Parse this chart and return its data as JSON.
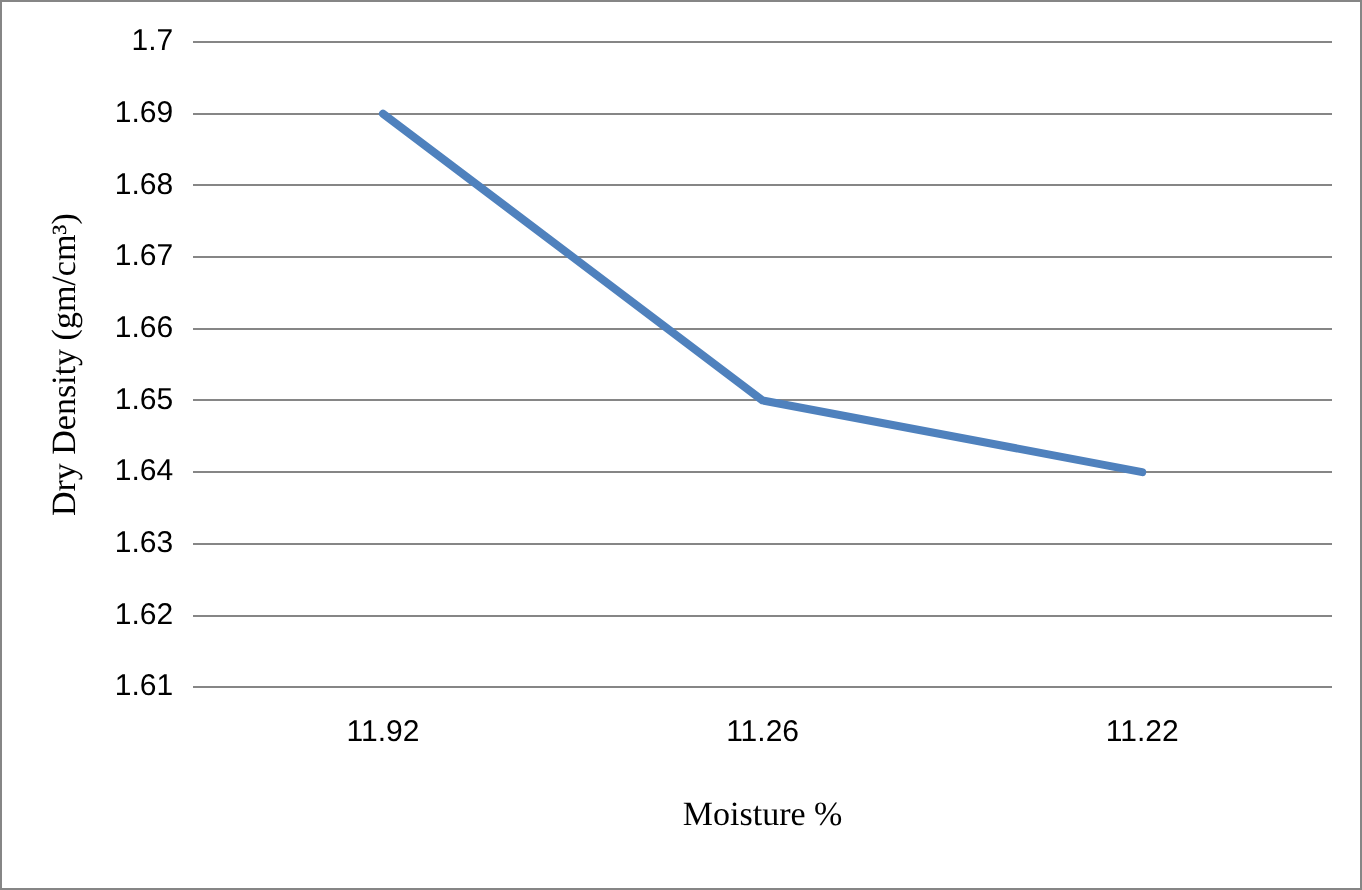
{
  "chart_data": {
    "type": "line",
    "xlabel": "Moisture %",
    "ylabel": "Dry Density (gm/cm³)",
    "categories": [
      "11.92",
      "11.26",
      "11.22"
    ],
    "series": [
      {
        "color": "#4f81bd",
        "values": [
          1.69,
          1.65,
          1.64
        ]
      }
    ],
    "ylim": [
      1.61,
      1.7
    ],
    "yticks": [
      1.61,
      1.62,
      1.63,
      1.64,
      1.65,
      1.66,
      1.67,
      1.68,
      1.69,
      1.7
    ],
    "grid": "y",
    "legend": false,
    "marker": "none",
    "line_style": "solid"
  }
}
